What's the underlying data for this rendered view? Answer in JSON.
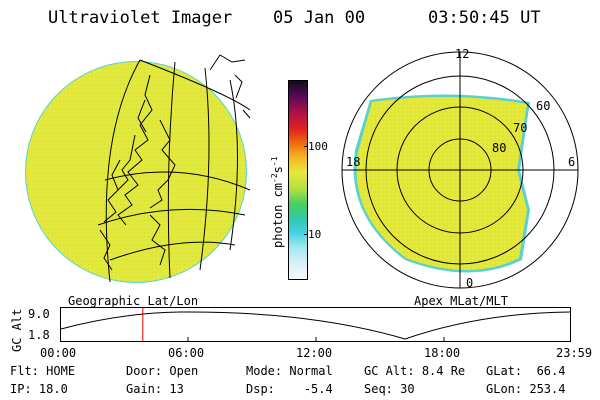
{
  "header": {
    "title": "Ultraviolet Imager",
    "date": "05 Jan 00",
    "time": "03:50:45 UT"
  },
  "colorbar": {
    "ticks": [
      "100",
      "10"
    ],
    "label": "photon cm",
    "label_exp1": "-2",
    "label_s": "s",
    "label_exp2": "-1"
  },
  "polar": {
    "clock_labels": {
      "top": "12",
      "left": "18",
      "right": "6",
      "bottom": "0"
    },
    "lat_labels": [
      "60",
      "70",
      "80"
    ]
  },
  "panel_labels": {
    "left": "Geographic Lat/Lon",
    "right": "Apex MLat/MLT"
  },
  "altitude_plot": {
    "axis_label": "GC Alt",
    "y_ticks": [
      "9.0",
      "1.8"
    ],
    "x_ticks": [
      "00:00",
      "06:00",
      "12:00",
      "18:00",
      "23:59"
    ],
    "marker_time_hours": 3.85
  },
  "footer": {
    "row1": [
      {
        "key": "Flt:",
        "value": "HOME"
      },
      {
        "key": "Door:",
        "value": "Open"
      },
      {
        "key": "Mode:",
        "value": "Normal"
      },
      {
        "key": "GC Alt:",
        "value": "8.4 Re"
      },
      {
        "key": "GLat:",
        "value": "66.4"
      }
    ],
    "row2": [
      {
        "key": "IP:",
        "value": "18.0"
      },
      {
        "key": "Gain:",
        "value": "13"
      },
      {
        "key": "Dsp:",
        "value": "-5.4"
      },
      {
        "key": "Seq:",
        "value": "30"
      },
      {
        "key": "GLon:",
        "value": "253.4"
      }
    ]
  },
  "colors": {
    "aurora_fill": "#e4e83a",
    "background": "#ffffff",
    "marker": "#e00000"
  }
}
